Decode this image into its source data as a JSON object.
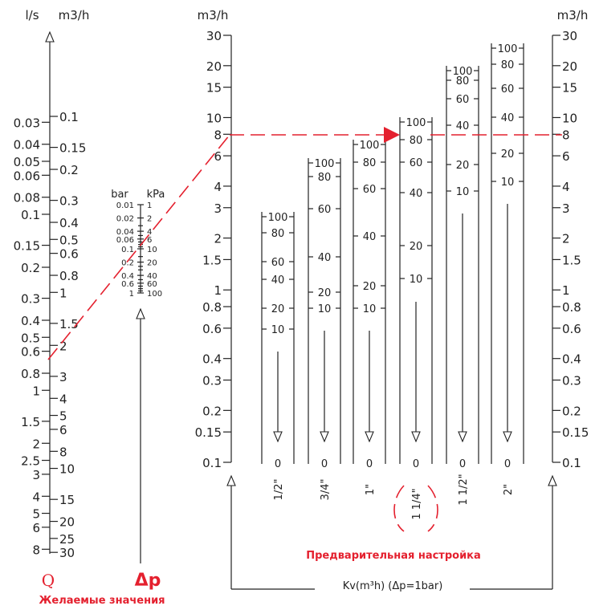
{
  "chart_data": {
    "type": "nomogram",
    "flow_scale": {
      "units": [
        "l/s",
        "m3/h"
      ],
      "ls_ticks": [
        "0.03",
        "0.04",
        "0.05",
        "0.06",
        "0.08",
        "0.1",
        "0.15",
        "0.2",
        "0.3",
        "0.4",
        "0.5",
        "0.6",
        "0.8",
        "1",
        "1.5",
        "2",
        "2.5",
        "3",
        "4",
        "5",
        "6",
        "8"
      ],
      "m3h_ticks": [
        "0.1",
        "0.15",
        "0.2",
        "0.3",
        "0.4",
        "0.5",
        "0.6",
        "0.8",
        "1",
        "1.5",
        "2",
        "3",
        "4",
        "5",
        "6",
        "8",
        "10",
        "15",
        "20",
        "25",
        "30"
      ]
    },
    "pressure_scale": {
      "units": [
        "bar",
        "kPa"
      ],
      "bar_ticks": [
        "0.01",
        "0.02",
        "0.04",
        "0.06",
        "0.1",
        "0.2",
        "0.4",
        "0.6",
        "1"
      ],
      "kpa_ticks": [
        "1",
        "2",
        "4",
        "6",
        "10",
        "20",
        "40",
        "60",
        "100"
      ]
    },
    "kv_scale": {
      "units": "m3/h",
      "ticks": [
        "0.1",
        "0.15",
        "0.2",
        "0.3",
        "0.4",
        "0.6",
        "0.8",
        "1",
        "1.5",
        "2",
        "3",
        "4",
        "6",
        "8",
        "10",
        "15",
        "20",
        "30"
      ]
    },
    "presetting_scales": [
      {
        "size": "1/2\"",
        "ticks": [
          "100",
          "80",
          "60",
          "40",
          "20",
          "10",
          "0"
        ]
      },
      {
        "size": "3/4\"",
        "ticks": [
          "100",
          "80",
          "60",
          "40",
          "20",
          "10",
          "0"
        ]
      },
      {
        "size": "1\"",
        "ticks": [
          "100",
          "80",
          "60",
          "40",
          "20",
          "10",
          "0"
        ]
      },
      {
        "size": "1 1/4\"",
        "ticks": [
          "100",
          "80",
          "60",
          "40",
          "20",
          "10",
          "0"
        ]
      },
      {
        "size": "1 1/2\"",
        "ticks": [
          "100",
          "80",
          "60",
          "40",
          "20",
          "10",
          "0"
        ]
      },
      {
        "size": "2\"",
        "ticks": [
          "100",
          "80",
          "60",
          "40",
          "20",
          "10",
          "0"
        ]
      }
    ],
    "labels": {
      "q": "Q",
      "dp": "Δp",
      "desired": "Желаемые значения",
      "presetting": "Предварительная настройка",
      "kv": "Kv(m³h)  (Δp=1bar)"
    },
    "colors": {
      "accent": "#e4202e",
      "ink": "#222222"
    }
  }
}
